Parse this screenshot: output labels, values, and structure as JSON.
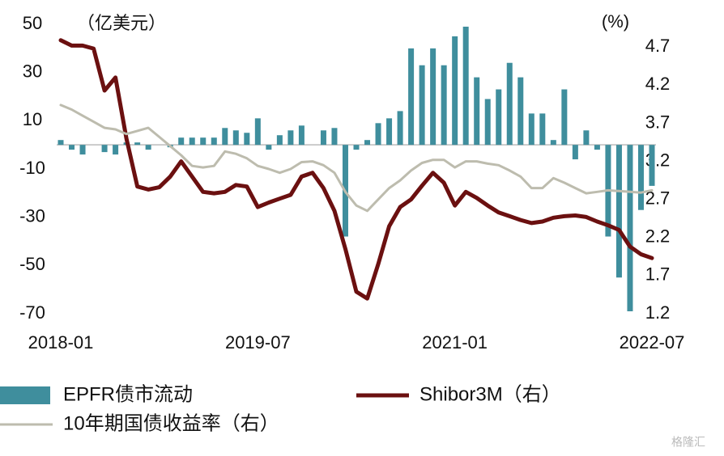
{
  "chart_data": {
    "type": "combo",
    "y_label": "（亿美元）",
    "y2_label": "(%)",
    "watermark": "格隆汇",
    "categories": [
      "2018-01",
      null,
      null,
      null,
      null,
      null,
      null,
      null,
      null,
      null,
      null,
      null,
      null,
      null,
      null,
      null,
      null,
      null,
      "2019-07",
      null,
      null,
      null,
      null,
      null,
      null,
      null,
      null,
      null,
      null,
      null,
      null,
      null,
      null,
      null,
      null,
      null,
      "2021-01",
      null,
      null,
      null,
      null,
      null,
      null,
      null,
      null,
      null,
      null,
      null,
      null,
      null,
      null,
      null,
      null,
      null,
      "2022-07"
    ],
    "series": [
      {
        "name": "EPFR债市流动",
        "type": "bar",
        "color": "#3f8e9d",
        "axis": "y",
        "values": [
          2,
          -2,
          -4,
          0,
          -3,
          -4,
          1,
          1,
          -2,
          0,
          -1,
          3,
          3,
          3,
          3,
          7,
          6,
          5,
          11,
          -2,
          4,
          6,
          8,
          0,
          6,
          7,
          -38,
          -2,
          2,
          9,
          11,
          14,
          40,
          33,
          40,
          33,
          45,
          49,
          28,
          19,
          23,
          34,
          28,
          13,
          13,
          2,
          23,
          -6,
          6,
          -2,
          -38,
          -55,
          -69,
          -27,
          -17
        ]
      },
      {
        "name": "Shibor3M（右）",
        "type": "line",
        "color": "#6b1010",
        "axis": "y2",
        "width": 5,
        "values": [
          4.79,
          4.72,
          4.72,
          4.68,
          4.13,
          4.3,
          3.5,
          2.87,
          2.83,
          2.86,
          3.0,
          3.2,
          3.0,
          2.8,
          2.78,
          2.8,
          2.89,
          2.87,
          2.6,
          2.66,
          2.71,
          2.76,
          3.0,
          3.05,
          2.85,
          2.55,
          2.05,
          1.49,
          1.4,
          1.85,
          2.35,
          2.6,
          2.7,
          2.88,
          3.05,
          2.92,
          2.62,
          2.8,
          2.72,
          2.62,
          2.53,
          2.48,
          2.43,
          2.39,
          2.41,
          2.46,
          2.48,
          2.49,
          2.47,
          2.41,
          2.36,
          2.3,
          2.08,
          1.98,
          1.93
        ]
      },
      {
        "name": "10年期国债收益率（右）",
        "type": "line",
        "color": "#bdbcae",
        "axis": "y2",
        "width": 3,
        "values": [
          3.94,
          3.88,
          3.8,
          3.72,
          3.64,
          3.62,
          3.56,
          3.6,
          3.64,
          3.52,
          3.4,
          3.28,
          3.14,
          3.12,
          3.14,
          3.33,
          3.3,
          3.24,
          3.14,
          3.1,
          3.05,
          3.1,
          3.19,
          3.2,
          3.15,
          3.05,
          2.8,
          2.62,
          2.55,
          2.7,
          2.85,
          2.95,
          3.08,
          3.18,
          3.22,
          3.22,
          3.12,
          3.2,
          3.2,
          3.17,
          3.15,
          3.08,
          3.0,
          2.85,
          2.85,
          2.98,
          2.92,
          2.85,
          2.78,
          2.8,
          2.82,
          2.81,
          2.8,
          2.79,
          2.82
        ]
      }
    ],
    "ylim": [
      -70,
      50
    ],
    "yticks": [
      50,
      30,
      10,
      -10,
      -30,
      -50,
      -70
    ],
    "y2lim": [
      1.2,
      5.0
    ],
    "y2ticks": [
      4.7,
      4.2,
      3.7,
      3.2,
      2.7,
      2.2,
      1.7,
      1.2
    ]
  }
}
